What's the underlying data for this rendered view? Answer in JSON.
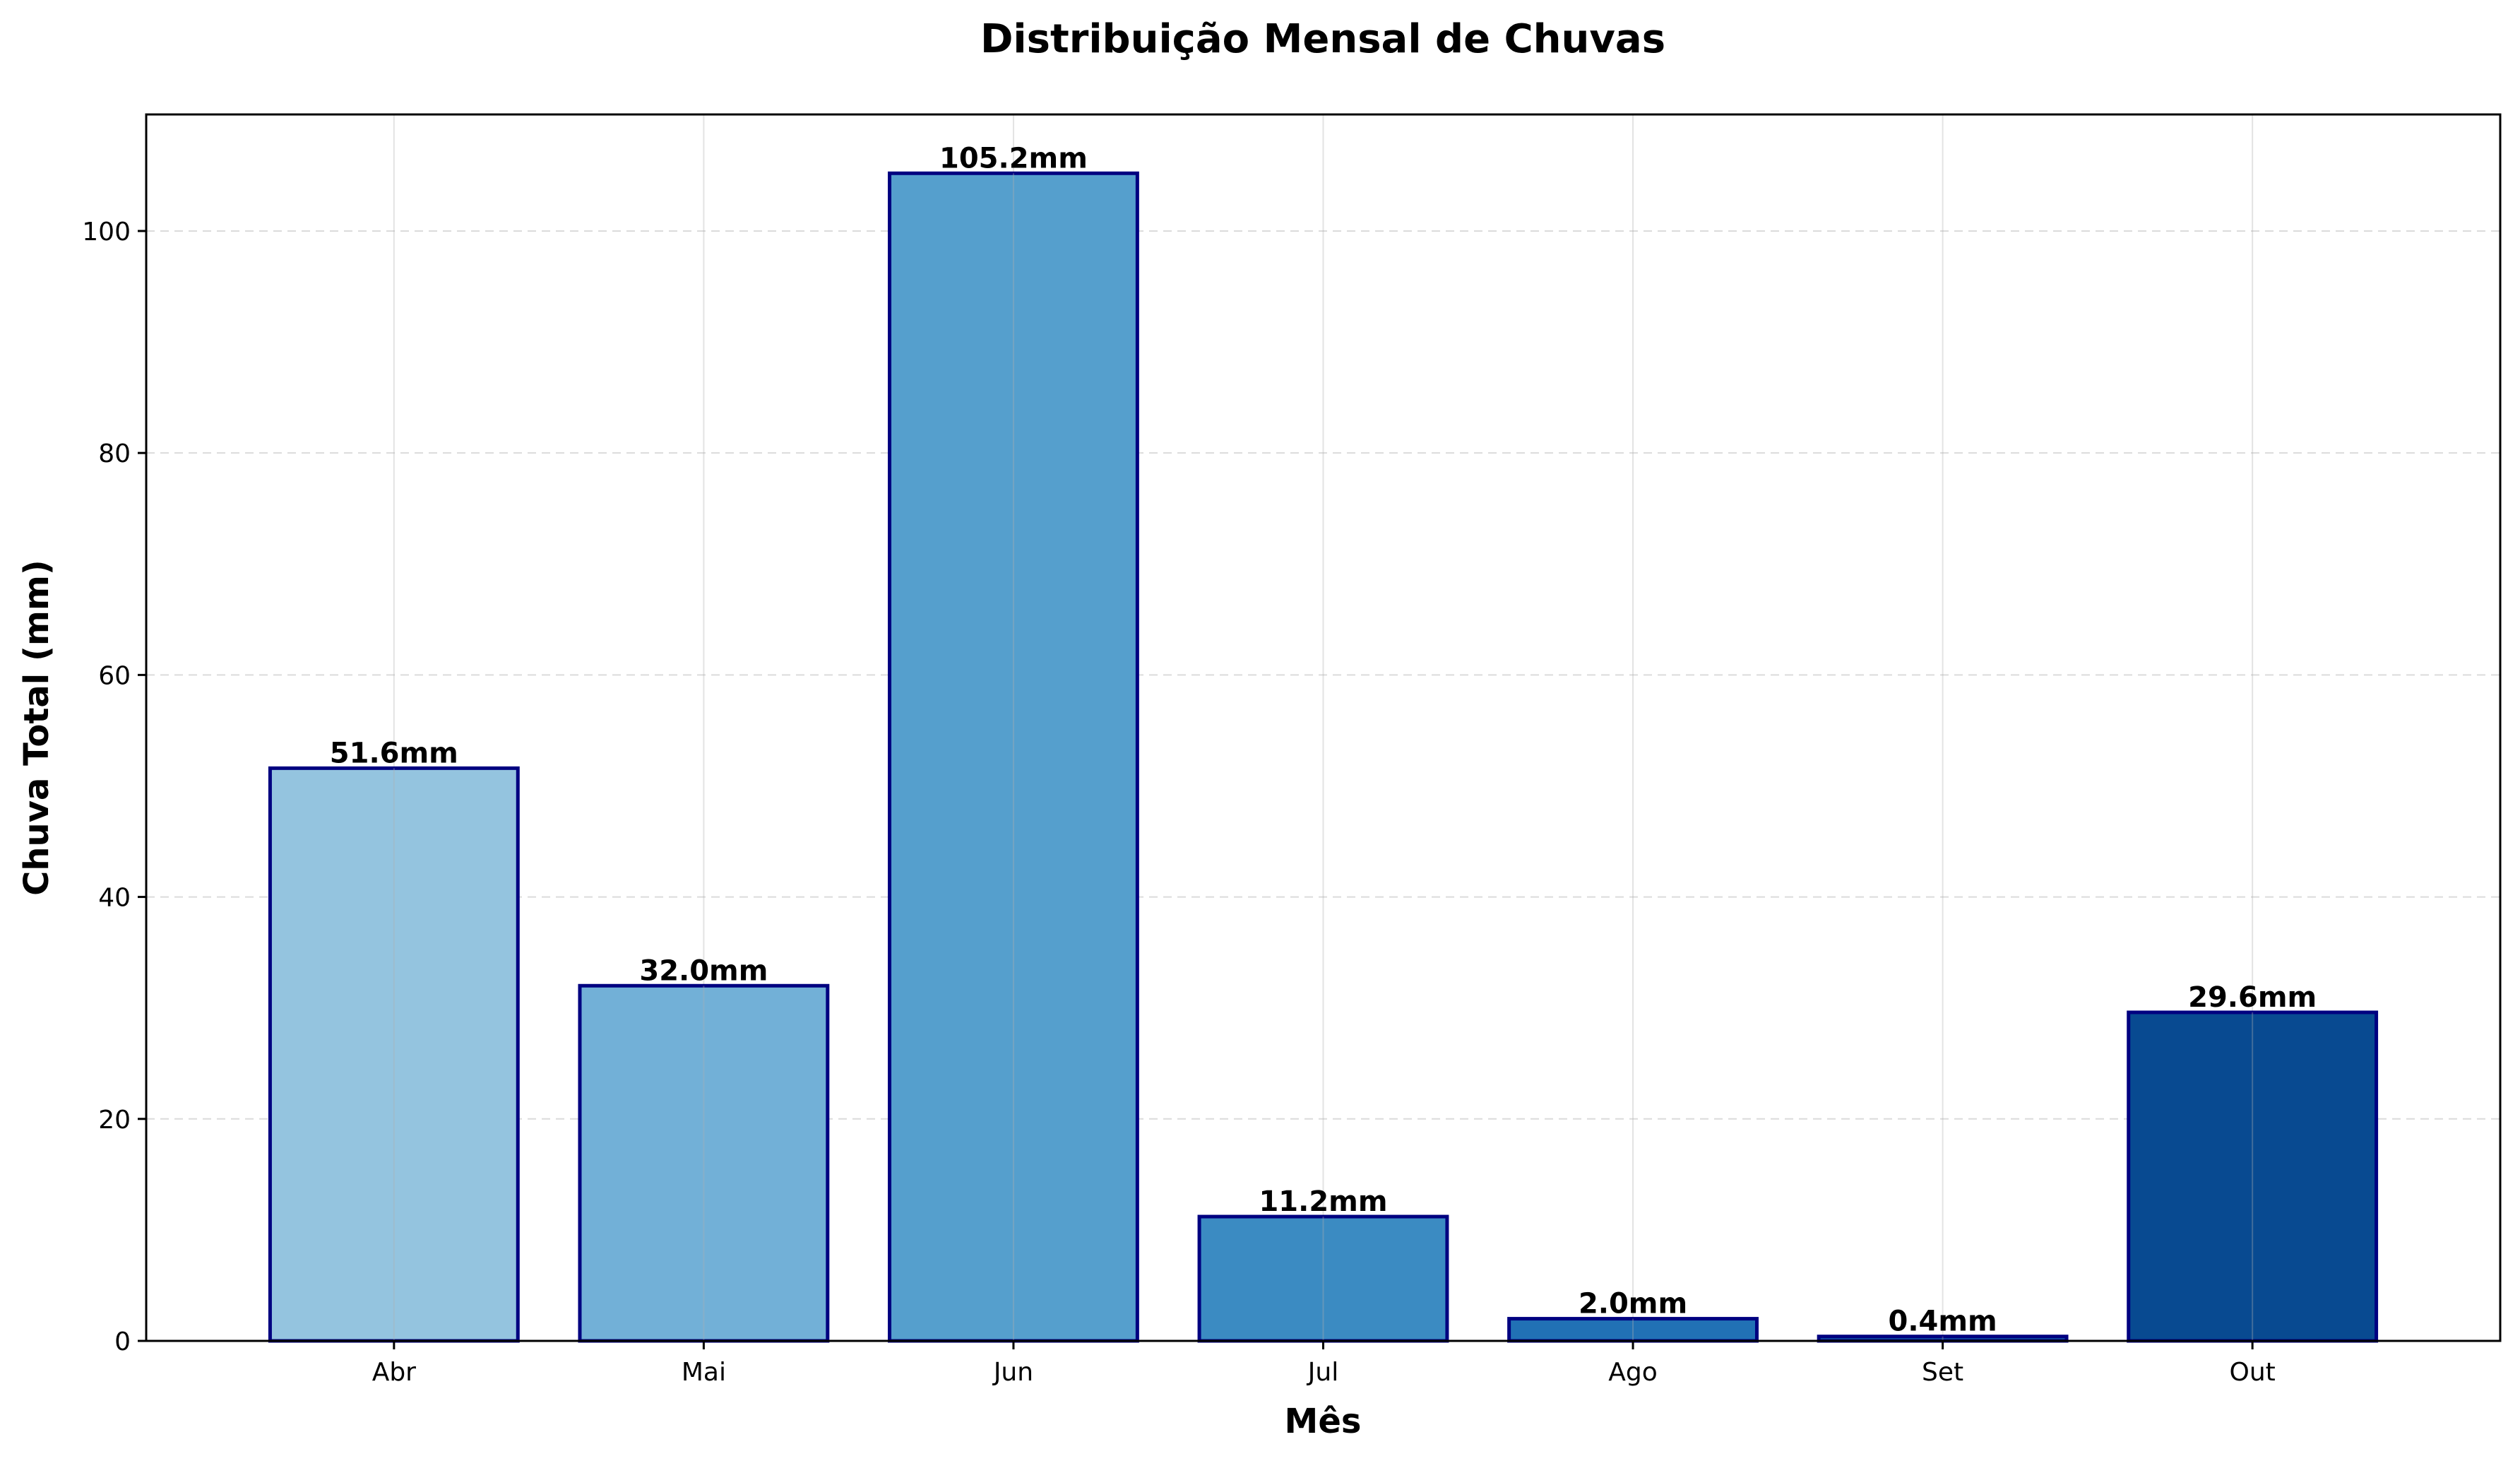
{
  "chart_data": {
    "type": "bar",
    "title": "Distribuição Mensal de Chuvas",
    "xlabel": "Mês",
    "ylabel": "Chuva Total (mm)",
    "categories": [
      "Abr",
      "Mai",
      "Jun",
      "Jul",
      "Ago",
      "Set",
      "Out"
    ],
    "values": [
      51.6,
      32.0,
      105.2,
      11.2,
      2.0,
      0.4,
      29.6
    ],
    "data_labels": [
      "51.6mm",
      "32.0mm",
      "105.2mm",
      "11.2mm",
      "2.0mm",
      "0.4mm",
      "29.6mm"
    ],
    "ylim": [
      0,
      110.5
    ],
    "yticks": [
      0,
      20,
      40,
      60,
      80,
      100
    ],
    "grid": true,
    "bar_colors": [
      "#94c4df",
      "#72b0d7",
      "#559fcd",
      "#3b8bc2",
      "#2171b5",
      "#135fa7",
      "#084a91"
    ],
    "bar_edge_color": "#000080"
  }
}
